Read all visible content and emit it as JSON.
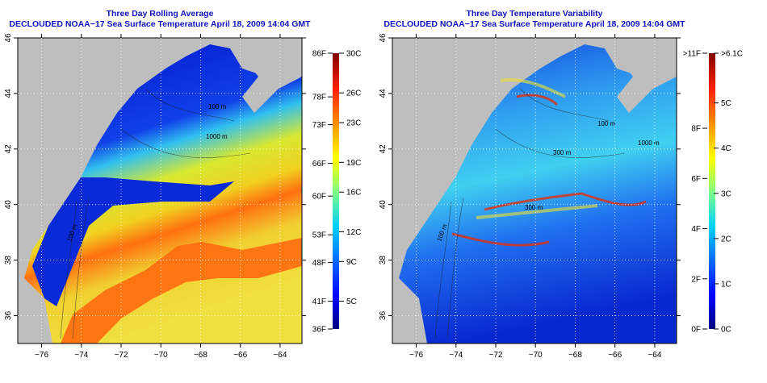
{
  "left_panel": {
    "title": "Three Day Rolling Average",
    "subtitle": "DECLOUDED NOAA−17 Sea Surface Temperature April 18, 2009 14:04 GMT",
    "colorbar": {
      "f_labels": [
        [
          "86F",
          30
        ],
        [
          "78F",
          25.6
        ],
        [
          "73F",
          22.8
        ],
        [
          "66F",
          18.9
        ],
        [
          "60F",
          15.6
        ],
        [
          "53F",
          11.7
        ],
        [
          "48F",
          8.9
        ],
        [
          "41F",
          5
        ],
        [
          "36F",
          2.2
        ]
      ],
      "c_labels": [
        [
          "30C",
          30
        ],
        [
          "26C",
          26
        ],
        [
          "23C",
          23
        ],
        [
          "19C",
          19
        ],
        [
          "16C",
          16
        ],
        [
          "12C",
          12
        ],
        [
          "9C",
          9
        ],
        [
          "5C",
          5
        ]
      ],
      "range": [
        2.2,
        30
      ]
    },
    "contour_labels": [
      "100 m",
      "1000 m",
      "100 m"
    ]
  },
  "right_panel": {
    "title": "Three Day Temperature Variability",
    "subtitle": "DECLOUDED NOAA−17 Sea Surface Temperature April 18, 2009 14:04 GMT",
    "colorbar": {
      "f_labels": [
        [
          ">11F",
          6.1
        ],
        [
          "8F",
          4.44
        ],
        [
          "6F",
          3.33
        ],
        [
          "4F",
          2.22
        ],
        [
          "2F",
          1.11
        ],
        [
          "0F",
          0
        ]
      ],
      "c_labels": [
        [
          ">6.1C",
          6.1
        ],
        [
          "5C",
          5
        ],
        [
          "4C",
          4
        ],
        [
          "3C",
          3
        ],
        [
          "2C",
          2
        ],
        [
          "1C",
          1
        ],
        [
          "0C",
          0
        ]
      ],
      "range": [
        0,
        6.1
      ]
    },
    "contour_labels": [
      "100 m",
      "300 m",
      "1000 m",
      "300 m",
      "100 m"
    ]
  },
  "axes": {
    "lon_ticks": [
      -76,
      -74,
      -72,
      -70,
      -68,
      -66,
      -64
    ],
    "lon_range": [
      -77.2,
      -62.9
    ],
    "lat_ticks": [
      46,
      44,
      42,
      40,
      38,
      36
    ],
    "lat_range": [
      35,
      46
    ]
  },
  "colors": {
    "land": "#bebebe",
    "title": "#1010c0"
  }
}
